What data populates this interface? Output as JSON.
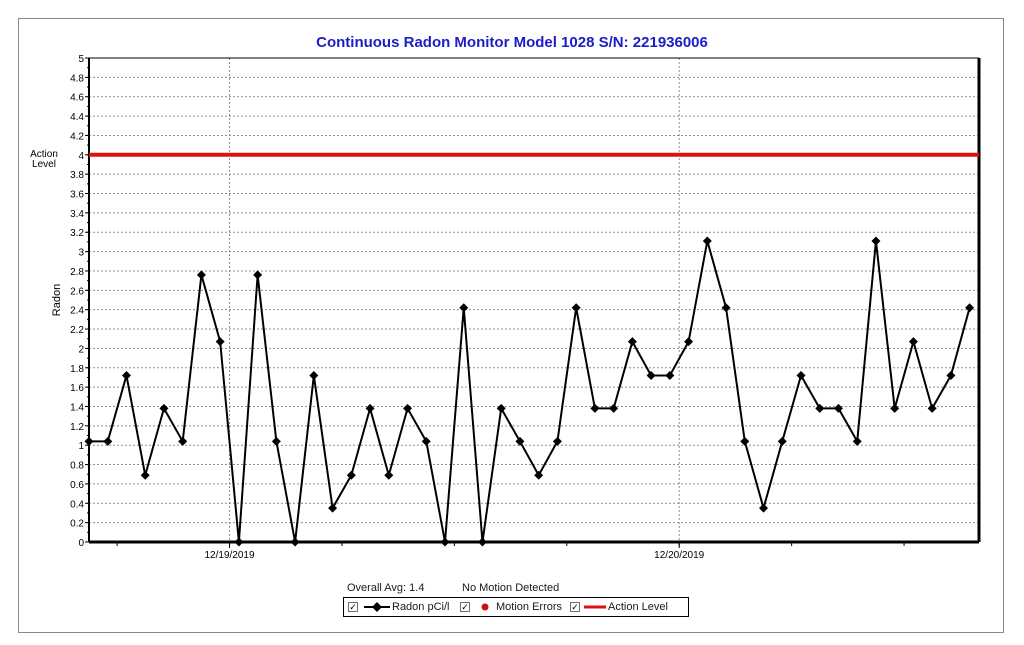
{
  "chart_data": {
    "type": "line",
    "title": "Continuous Radon Monitor Model 1028 S/N: 221936006",
    "ylabel": "Radon",
    "xlabel": "",
    "ylim": [
      0,
      5
    ],
    "y_ticks": [
      "0",
      "0.2",
      "0.4",
      "0.6",
      "0.8",
      "1",
      "1.2",
      "1.4",
      "1.6",
      "1.8",
      "2",
      "2.2",
      "2.4",
      "2.6",
      "2.8",
      "3",
      "3.2",
      "3.4",
      "3.6",
      "3.8",
      "4",
      "4.2",
      "4.4",
      "4.6",
      "4.8",
      "5"
    ],
    "x_tick_labels": [
      "12/19/2019",
      "12/20/2019"
    ],
    "x_tick_hours": [
      7.5,
      31.5
    ],
    "x_units": "hours since first reading",
    "x_range_hours": [
      0,
      47.5
    ],
    "grid": true,
    "series": [
      {
        "name": "Radon pCi/l",
        "color": "#000000",
        "x_hours": [
          0,
          1,
          2,
          3,
          4,
          5,
          6,
          7,
          8,
          9,
          10,
          11,
          12,
          13,
          14,
          15,
          16,
          17,
          18,
          19,
          20,
          21,
          22,
          23,
          24,
          25,
          26,
          27,
          28,
          29,
          30,
          31,
          32,
          33,
          34,
          35,
          36,
          37,
          38,
          39,
          40,
          41,
          42,
          43,
          44,
          45,
          46,
          47
        ],
        "values": [
          1.04,
          1.04,
          1.72,
          0.69,
          1.38,
          1.04,
          2.76,
          2.07,
          0,
          2.76,
          1.04,
          0,
          1.72,
          0.35,
          0.69,
          1.38,
          0.69,
          1.38,
          1.04,
          0,
          2.42,
          0,
          1.38,
          1.04,
          0.69,
          1.04,
          2.42,
          1.38,
          1.38,
          2.07,
          1.72,
          1.72,
          2.07,
          3.11,
          2.42,
          1.04,
          0.35,
          1.04,
          1.72,
          1.38,
          1.38,
          1.04,
          3.11,
          1.38,
          2.07,
          1.38,
          1.72,
          2.42
        ]
      }
    ],
    "action_level": {
      "value": 4,
      "label_line1": "Action",
      "label_line2": "Level",
      "color": "#e01010"
    }
  },
  "summary": {
    "overall_avg": "Overall Avg: 1.4",
    "motion_status": "No Motion Detected"
  },
  "legend": {
    "items": [
      {
        "label": "Radon pCi/l",
        "checked": true,
        "icon": "diamond-line-icon"
      },
      {
        "label": "Motion Errors",
        "checked": true,
        "icon": "red-dot-icon",
        "color": "#cc1111"
      },
      {
        "label": "Action Level",
        "checked": true,
        "icon": "red-line-icon",
        "color": "#e01010"
      }
    ]
  },
  "colors": {
    "title": "#1c1cc8",
    "grid": "#8c8c8c",
    "axis": "#000000"
  }
}
